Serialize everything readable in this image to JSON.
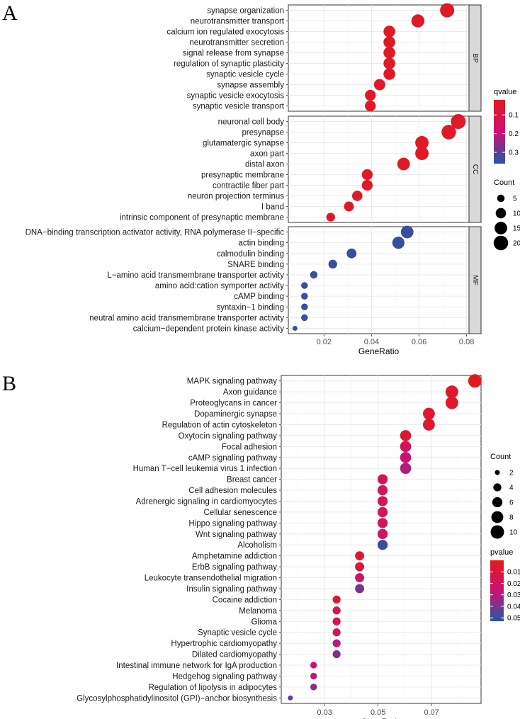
{
  "chart_data": [
    {
      "panel": "A",
      "type": "scatter",
      "subtype": "dot-plot",
      "xlabel": "GeneRatio",
      "xlim": [
        0.005,
        0.081
      ],
      "xticks": [
        0.02,
        0.04,
        0.06,
        0.08
      ],
      "x_tick_labels": [
        "0.02",
        "0.04",
        "0.06",
        "0.08"
      ],
      "color_var": "qvalue",
      "size_var": "Count",
      "color_scale": {
        "low": "#e31a1c",
        "high": "#2457a6",
        "domain": [
          0.02,
          0.36
        ],
        "ticks": [
          0.1,
          0.2,
          0.3
        ],
        "labels": [
          "0.1",
          "0.2",
          "0.3"
        ]
      },
      "size_legend": {
        "values": [
          5,
          10,
          15,
          20
        ],
        "labels": [
          "5",
          "10",
          "15",
          "20"
        ],
        "domain": [
          2,
          21
        ]
      },
      "facets": [
        {
          "name": "BP",
          "terms": [
            {
              "term": "synapse organization",
              "x": 0.0718,
              "count": 19,
              "q": 0.04
            },
            {
              "term": "neurotransmitter transport",
              "x": 0.0595,
              "count": 16,
              "q": 0.04
            },
            {
              "term": "calcium ion regulated exocytosis",
              "x": 0.0475,
              "count": 13,
              "q": 0.04
            },
            {
              "term": "neurotransmitter secretion",
              "x": 0.0475,
              "count": 13,
              "q": 0.04
            },
            {
              "term": "signal release from synapse",
              "x": 0.0475,
              "count": 13,
              "q": 0.04
            },
            {
              "term": "regulation of synaptic plasticity",
              "x": 0.0475,
              "count": 13,
              "q": 0.04
            },
            {
              "term": "synaptic vesicle cycle",
              "x": 0.0475,
              "count": 13,
              "q": 0.04
            },
            {
              "term": "synapse assembly",
              "x": 0.0434,
              "count": 12,
              "q": 0.04
            },
            {
              "term": "synaptic vesicle exocytosis",
              "x": 0.0395,
              "count": 11,
              "q": 0.04
            },
            {
              "term": "synaptic vesicle transport",
              "x": 0.0395,
              "count": 11,
              "q": 0.04
            }
          ]
        },
        {
          "name": "CC",
          "terms": [
            {
              "term": "neuronal cell body",
              "x": 0.0765,
              "count": 21,
              "q": 0.04
            },
            {
              "term": "presynapse",
              "x": 0.0725,
              "count": 20,
              "q": 0.04
            },
            {
              "term": "glutamatergic synapse",
              "x": 0.0612,
              "count": 17,
              "q": 0.04
            },
            {
              "term": "axon part",
              "x": 0.0612,
              "count": 17,
              "q": 0.04
            },
            {
              "term": "distal axon",
              "x": 0.0535,
              "count": 15,
              "q": 0.04
            },
            {
              "term": "presynaptic membrane",
              "x": 0.0382,
              "count": 11,
              "q": 0.04
            },
            {
              "term": "contractile fiber part",
              "x": 0.0382,
              "count": 11,
              "q": 0.04
            },
            {
              "term": "neuron projection terminus",
              "x": 0.034,
              "count": 10,
              "q": 0.04
            },
            {
              "term": "I band",
              "x": 0.0305,
              "count": 9,
              "q": 0.04
            },
            {
              "term": "intrinsic component of presynaptic membrane",
              "x": 0.0228,
              "count": 7,
              "q": 0.04
            }
          ]
        },
        {
          "name": "MF",
          "terms": [
            {
              "term": "DNA−binding transcription activator activity, RNA polymerase II−specific",
              "x": 0.055,
              "count": 15,
              "q": 0.34
            },
            {
              "term": "actin binding",
              "x": 0.0513,
              "count": 14,
              "q": 0.34
            },
            {
              "term": "calmodulin binding",
              "x": 0.0316,
              "count": 9,
              "q": 0.34
            },
            {
              "term": "SNARE binding",
              "x": 0.0237,
              "count": 7,
              "q": 0.34
            },
            {
              "term": "L−amino acid transmembrane transporter activity",
              "x": 0.0157,
              "count": 5,
              "q": 0.34
            },
            {
              "term": "amino acid:cation symporter activity",
              "x": 0.0118,
              "count": 4,
              "q": 0.34
            },
            {
              "term": "cAMP binding",
              "x": 0.0118,
              "count": 4,
              "q": 0.34
            },
            {
              "term": "syntaxin−1 binding",
              "x": 0.0118,
              "count": 4,
              "q": 0.34
            },
            {
              "term": "neutral amino acid transmembrane transporter activity",
              "x": 0.0118,
              "count": 4,
              "q": 0.34
            },
            {
              "term": "calcium−dependent protein kinase activity",
              "x": 0.0078,
              "count": 2,
              "q": 0.34
            }
          ]
        }
      ]
    },
    {
      "panel": "B",
      "type": "scatter",
      "subtype": "dot-plot",
      "xlabel": "GeneRatio",
      "xlim": [
        0.0138,
        0.0885
      ],
      "xticks": [
        0.03,
        0.05,
        0.07
      ],
      "x_tick_labels": [
        "0.03",
        "0.05",
        "0.07"
      ],
      "color_var": "pvalue",
      "size_var": "Count",
      "color_scale": {
        "low": "#e31a1c",
        "high": "#2457a6",
        "domain": [
          0.0,
          0.053
        ],
        "ticks": [
          0.01,
          0.02,
          0.03,
          0.04,
          0.05
        ],
        "labels": [
          "0.01",
          "0.02",
          "0.03",
          "0.04",
          "0.05"
        ]
      },
      "size_legend": {
        "values": [
          2,
          4,
          6,
          8,
          10
        ],
        "labels": [
          "2",
          "4",
          "6",
          "8",
          "10"
        ],
        "domain": [
          2,
          10
        ]
      },
      "terms": [
        {
          "term": "MAPK signaling pathway",
          "x": 0.0862,
          "count": 10,
          "p": 0.001
        },
        {
          "term": "Axon guidance",
          "x": 0.0776,
          "count": 9,
          "p": 0.004
        },
        {
          "term": "Proteoglycans in cancer",
          "x": 0.0776,
          "count": 9,
          "p": 0.004
        },
        {
          "term": "Dopaminergic synapse",
          "x": 0.069,
          "count": 8,
          "p": 0.006
        },
        {
          "term": "Regulation of actin cytoskeleton",
          "x": 0.069,
          "count": 8,
          "p": 0.006
        },
        {
          "term": "Oxytocin signaling pathway",
          "x": 0.0603,
          "count": 7,
          "p": 0.006
        },
        {
          "term": "Focal adhesion",
          "x": 0.0603,
          "count": 7,
          "p": 0.02
        },
        {
          "term": "cAMP signaling pathway",
          "x": 0.0603,
          "count": 7,
          "p": 0.027
        },
        {
          "term": "Human T−cell leukemia virus 1 infection",
          "x": 0.0603,
          "count": 7,
          "p": 0.031
        },
        {
          "term": "Breast cancer",
          "x": 0.0517,
          "count": 6,
          "p": 0.018
        },
        {
          "term": "Cell adhesion molecules",
          "x": 0.0517,
          "count": 6,
          "p": 0.018
        },
        {
          "term": "Adrenergic signaling in cardiomyocytes",
          "x": 0.0517,
          "count": 6,
          "p": 0.018
        },
        {
          "term": "Cellular senescence",
          "x": 0.0517,
          "count": 6,
          "p": 0.018
        },
        {
          "term": "Hippo signaling pathway",
          "x": 0.0517,
          "count": 6,
          "p": 0.018
        },
        {
          "term": "Wnt signaling pathway",
          "x": 0.0517,
          "count": 6,
          "p": 0.02
        },
        {
          "term": "Alcoholism",
          "x": 0.0517,
          "count": 6,
          "p": 0.05
        },
        {
          "term": "Amphetamine addiction",
          "x": 0.0431,
          "count": 5,
          "p": 0.007
        },
        {
          "term": "ErbB signaling pathway",
          "x": 0.0431,
          "count": 5,
          "p": 0.008
        },
        {
          "term": "Leukocyte transendothelial migration",
          "x": 0.0431,
          "count": 5,
          "p": 0.019
        },
        {
          "term": "Insulin signaling pathway",
          "x": 0.0431,
          "count": 5,
          "p": 0.039
        },
        {
          "term": "Cocaine addiction",
          "x": 0.0345,
          "count": 4,
          "p": 0.009
        },
        {
          "term": "Melanoma",
          "x": 0.0345,
          "count": 4,
          "p": 0.017
        },
        {
          "term": "Glioma",
          "x": 0.0345,
          "count": 4,
          "p": 0.018
        },
        {
          "term": "Synaptic vesicle cycle",
          "x": 0.0345,
          "count": 4,
          "p": 0.02
        },
        {
          "term": "Hypertrophic cardiomyopathy",
          "x": 0.0345,
          "count": 4,
          "p": 0.03
        },
        {
          "term": "Dilated cardiomyopathy",
          "x": 0.0345,
          "count": 4,
          "p": 0.038
        },
        {
          "term": "Intestinal immune network for IgA production",
          "x": 0.0259,
          "count": 3,
          "p": 0.026
        },
        {
          "term": "Hedgehog signaling pathway",
          "x": 0.0259,
          "count": 3,
          "p": 0.03
        },
        {
          "term": "Regulation of lipolysis in adipocytes",
          "x": 0.0259,
          "count": 3,
          "p": 0.037
        },
        {
          "term": "Glycosylphosphatidylinositol (GPI)−anchor biosynthesis",
          "x": 0.0172,
          "count": 2,
          "p": 0.043
        }
      ]
    }
  ]
}
